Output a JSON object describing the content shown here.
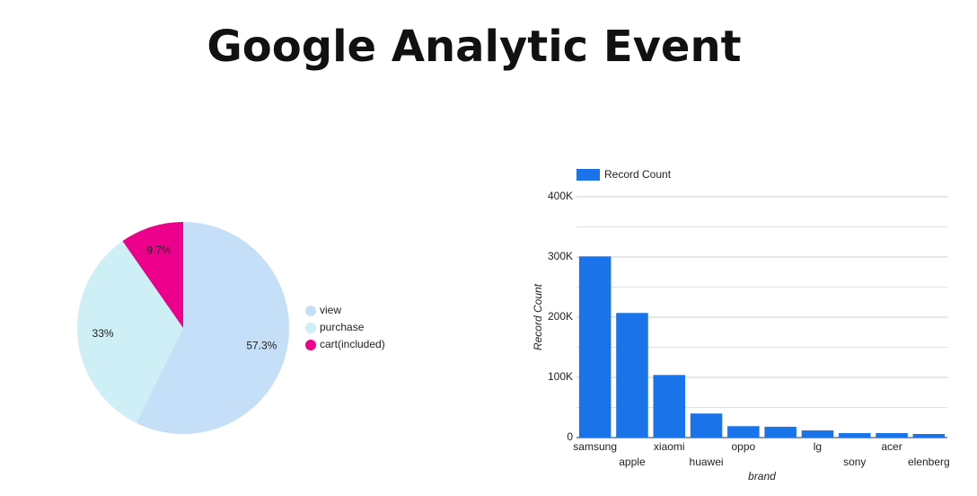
{
  "title": "Google Analytic Event",
  "chart_data": [
    {
      "type": "pie",
      "categories": [
        "view",
        "purchase",
        "cart(included)"
      ],
      "values": [
        57.3,
        33,
        9.7
      ],
      "value_labels": [
        "57.3%",
        "33%",
        "9.7%"
      ],
      "colors": [
        "#c6dff8",
        "#cdeff5",
        "#ec008c"
      ],
      "legend": "right"
    },
    {
      "type": "bar",
      "categories": [
        "samsung",
        "apple",
        "xiaomi",
        "huawei",
        "oppo",
        null,
        "lg",
        "sony",
        "acer",
        "elenberg"
      ],
      "series": [
        {
          "name": "Record Count",
          "color": "#1a73e8",
          "values": [
            301000,
            207000,
            104000,
            40000,
            19000,
            18000,
            12000,
            7500,
            7500,
            6000
          ]
        }
      ],
      "xlabel": "brand",
      "ylabel": "Record Count",
      "ylim": [
        0,
        400000
      ],
      "yticks": [
        0,
        {
          "value": 100000,
          "label": "100K"
        },
        {
          "value": 200000,
          "label": "200K"
        },
        {
          "value": 300000,
          "label": "300K"
        },
        {
          "value": 400000,
          "label": "400K"
        }
      ],
      "yminor": [
        50000,
        150000,
        250000,
        350000
      ],
      "grid": true,
      "legend": "top-left"
    }
  ]
}
